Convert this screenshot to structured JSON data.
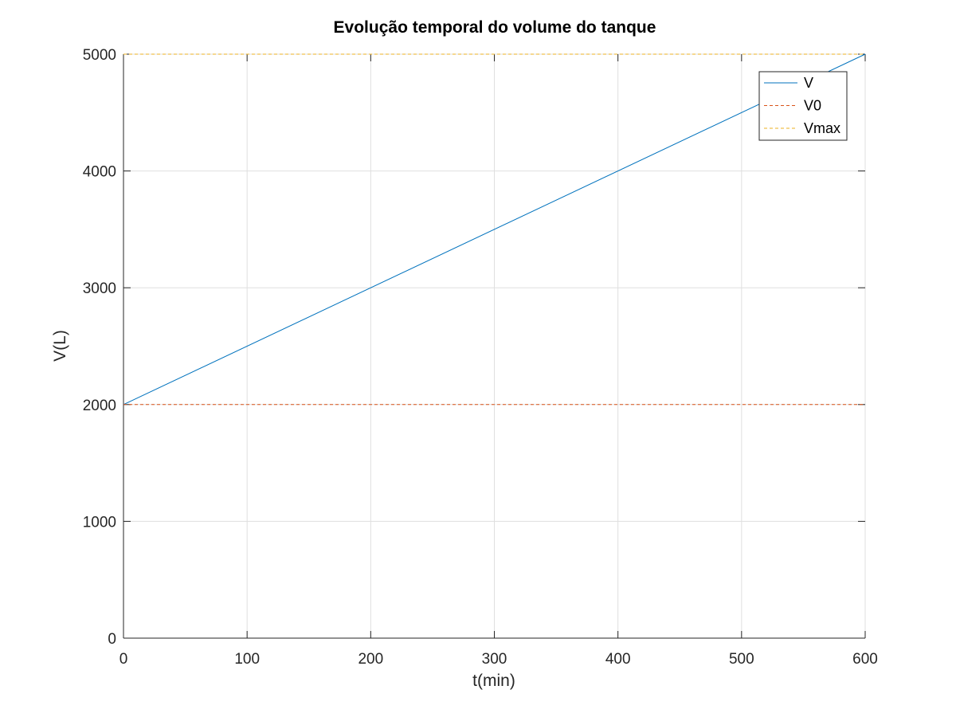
{
  "chart_data": {
    "type": "line",
    "title": "Evolução temporal do volume do tanque",
    "xlabel": "t(min)",
    "ylabel": "V(L)",
    "xlim": [
      0,
      600
    ],
    "ylim": [
      0,
      5000
    ],
    "xticks": [
      0,
      100,
      200,
      300,
      400,
      500,
      600
    ],
    "yticks": [
      0,
      1000,
      2000,
      3000,
      4000,
      5000
    ],
    "grid": true,
    "legend_position": "top-right",
    "series": [
      {
        "name": "V",
        "style": "solid",
        "color": "#0072bd",
        "x": [
          0,
          600
        ],
        "y": [
          2000,
          5000
        ]
      },
      {
        "name": "V0",
        "style": "dashed",
        "color": "#d95319",
        "x": [
          0,
          600
        ],
        "y": [
          2000,
          2000
        ]
      },
      {
        "name": "Vmax",
        "style": "dashed",
        "color": "#edb120",
        "x": [
          0,
          600
        ],
        "y": [
          5000,
          5000
        ]
      }
    ]
  }
}
